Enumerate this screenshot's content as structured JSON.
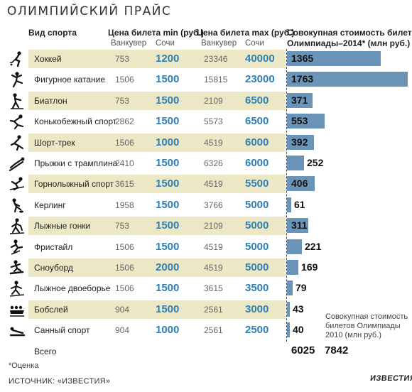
{
  "title": "ОЛИМПИЙСКИЙ ПРАЙС",
  "headers": {
    "sport": "Вид спорта",
    "min_price": "Цена билета min (руб.)",
    "max_price": "Цена билета max (руб.)",
    "total_line1": "Совокупная стоимость билетов",
    "total_line2": "Олимпиады–2014* (млн руб.)",
    "vancouver": "Ванкувер",
    "sochi": "Сочи"
  },
  "colors": {
    "band": "#ece7c5",
    "bar": "#6b95b8",
    "sochi_text": "#2e7fb4"
  },
  "chart_data": {
    "type": "table",
    "columns": [
      "Вид спорта",
      "Ванкувер min",
      "Сочи min",
      "Ванкувер max",
      "Сочи max",
      "Совокупная стоимость билетов Олимпиады–2014* (млн руб.)"
    ],
    "rows": [
      {
        "icon": "hockey-icon",
        "sport": "Хоккей",
        "van_min": "753",
        "sochi_min": "1200",
        "van_max": "23346",
        "sochi_max": "40000",
        "total": 1365
      },
      {
        "icon": "figure-skating-icon",
        "sport": "Фигурное катание",
        "van_min": "1506",
        "sochi_min": "1500",
        "van_max": "15815",
        "sochi_max": "23000",
        "total": 1763
      },
      {
        "icon": "biathlon-icon",
        "sport": "Биатлон",
        "van_min": "753",
        "sochi_min": "1500",
        "van_max": "2109",
        "sochi_max": "6500",
        "total": 371
      },
      {
        "icon": "speed-skating-icon",
        "sport": "Конькобежный спорт",
        "van_min": "2862",
        "sochi_min": "1500",
        "van_max": "5573",
        "sochi_max": "6500",
        "total": 553
      },
      {
        "icon": "short-track-icon",
        "sport": "Шорт-трек",
        "van_min": "1506",
        "sochi_min": "1000",
        "van_max": "4519",
        "sochi_max": "6000",
        "total": 392
      },
      {
        "icon": "ski-jumping-icon",
        "sport": "Прыжки с трамплина",
        "van_min": "2410",
        "sochi_min": "1500",
        "van_max": "6326",
        "sochi_max": "6000",
        "total": 252
      },
      {
        "icon": "alpine-skiing-icon",
        "sport": "Горнолыжный спорт",
        "van_min": "3615",
        "sochi_min": "1500",
        "van_max": "4519",
        "sochi_max": "5500",
        "total": 406
      },
      {
        "icon": "curling-icon",
        "sport": "Керлинг",
        "van_min": "1958",
        "sochi_min": "1500",
        "van_max": "3766",
        "sochi_max": "5000",
        "total": 61
      },
      {
        "icon": "cross-country-icon",
        "sport": "Лыжные гонки",
        "van_min": "753",
        "sochi_min": "1500",
        "van_max": "2109",
        "sochi_max": "5000",
        "total": 311
      },
      {
        "icon": "freestyle-icon",
        "sport": "Фристайл",
        "van_min": "1506",
        "sochi_min": "1500",
        "van_max": "4519",
        "sochi_max": "5000",
        "total": 221
      },
      {
        "icon": "snowboard-icon",
        "sport": "Сноуборд",
        "van_min": "1506",
        "sochi_min": "2000",
        "van_max": "4519",
        "sochi_max": "5000",
        "total": 169
      },
      {
        "icon": "nordic-combined-icon",
        "sport": "Лыжное двоеборье",
        "van_min": "1506",
        "sochi_min": "1500",
        "van_max": "3615",
        "sochi_max": "3500",
        "total": 79
      },
      {
        "icon": "bobsleigh-icon",
        "sport": "Бобслей",
        "van_min": "904",
        "sochi_min": "1500",
        "van_max": "2561",
        "sochi_max": "3000",
        "total": 43
      },
      {
        "icon": "luge-icon",
        "sport": "Санный спорт",
        "van_min": "904",
        "sochi_min": "1000",
        "van_max": "2561",
        "sochi_max": "2500",
        "total": 40
      }
    ],
    "x_range": [
      0,
      1800
    ]
  },
  "totals": {
    "label": "Всего",
    "total_2014": "6025",
    "total_2010": "7842",
    "note_2010": "Совокупная стоимость билетов Олимпиады 2010 (млн руб.)"
  },
  "footnote": "*Оценка",
  "source": "ИСТОЧНИК: «ИЗВЕСТИЯ»",
  "brand": "ИЗВЕСТИЯ"
}
